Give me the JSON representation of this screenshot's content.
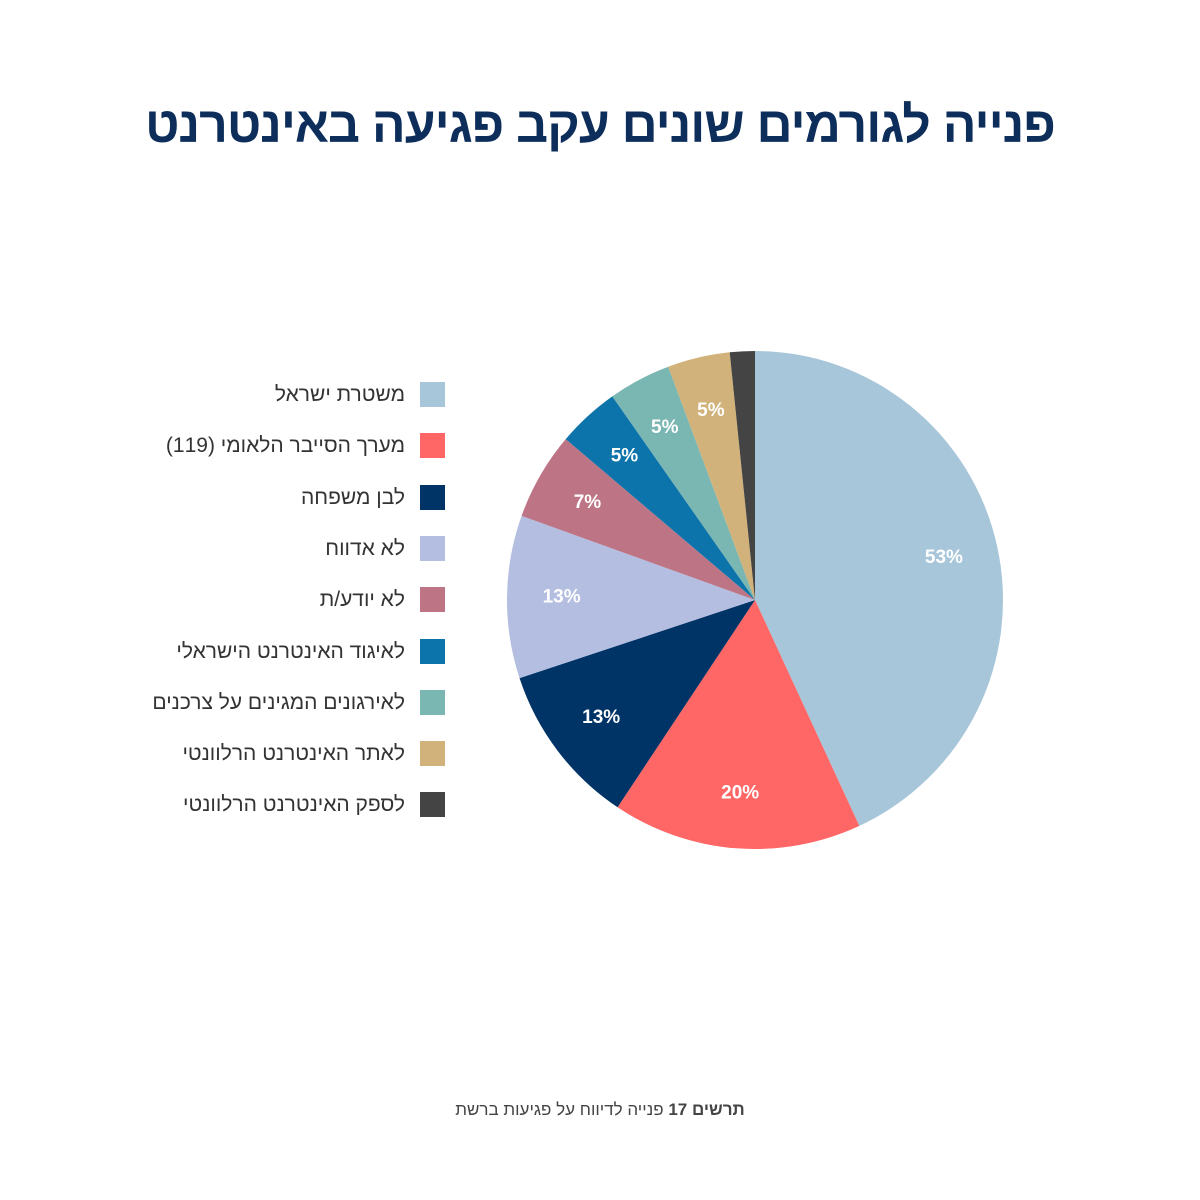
{
  "title": "פנייה לגורמים שונים עקב פגיעה באינטרנט",
  "footnote": {
    "bold": "תרשים 17",
    "text": "פנייה לדיווח על פגיעות ברשת"
  },
  "chart_data": {
    "type": "pie",
    "title": "פנייה לגורמים שונים עקב פגיעה באינטרנט",
    "legend_position": "left",
    "slices": [
      {
        "name": "משטרת ישראל",
        "value": 53,
        "label": "53%",
        "color": "#a8c6d9",
        "label_color": "#ffffff"
      },
      {
        "name": "מערך הסייבר הלאומי (119)",
        "value": 20,
        "label": "20%",
        "color": "#ff6666",
        "label_color": "#ffffff"
      },
      {
        "name": "לבן משפחה",
        "value": 13,
        "label": "13%",
        "color": "#003366",
        "label_color": "#ffffff"
      },
      {
        "name": "לא אדווח",
        "value": 13,
        "label": "13%",
        "color": "#b3bee0",
        "label_color": "#ffffff"
      },
      {
        "name": "לא יודע/ת",
        "value": 7,
        "label": "7%",
        "color": "#bd7586",
        "label_color": "#ffffff"
      },
      {
        "name": "לאיגוד האינטרנט הישראלי",
        "value": 5,
        "label": "5%",
        "color": "#0c74aa",
        "label_color": "#ffffff"
      },
      {
        "name": "לאירגונים המגינים על צרכנים",
        "value": 5,
        "label": "5%",
        "color": "#7ab6b2",
        "label_color": "#ffffff"
      },
      {
        "name": "לאתר האינטרנט הרלוונטי",
        "value": 5,
        "label": "5%",
        "color": "#d1b27a",
        "label_color": "#ffffff"
      },
      {
        "name": "לספק האינטרנט הרלוונטי",
        "value": 2,
        "label": "",
        "color": "#444444",
        "label_color": "#ffffff"
      }
    ]
  }
}
